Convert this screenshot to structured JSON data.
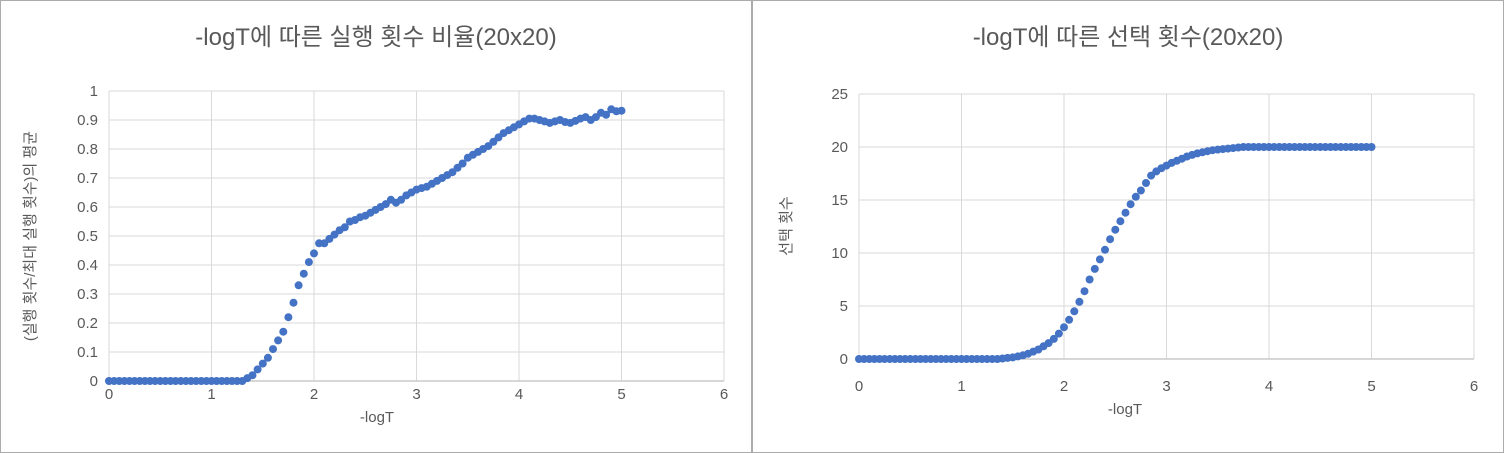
{
  "colors": {
    "marker_blue": "#4472C4",
    "text_gray": "#595959",
    "gridline_gray": "#D9D9D9",
    "axis_gray": "#BFBFBF",
    "panel_border_gray": "#ABABAB"
  },
  "chart_data": [
    {
      "type": "scatter",
      "title": "-logT에 따른 실행 횟수 비율(20x20)",
      "xlabel": "-logT",
      "ylabel": "(실행 횟수/최대 실행 횟수)의 평균",
      "xlim": [
        0,
        6
      ],
      "ylim": [
        0,
        1
      ],
      "x_ticks": [
        0,
        1,
        2,
        3,
        4,
        5,
        6
      ],
      "x_tick_labels": [
        "0",
        "1",
        "2",
        "3",
        "4",
        "5",
        "6"
      ],
      "y_ticks": [
        0,
        0.1,
        0.2,
        0.3,
        0.4,
        0.5,
        0.6,
        0.7,
        0.8,
        0.9,
        1
      ],
      "y_tick_labels": [
        "0",
        "0.1",
        "0.2",
        "0.3",
        "0.4",
        "0.5",
        "0.6",
        "0.7",
        "0.8",
        "0.9",
        "1"
      ],
      "grid": true,
      "legend": "none",
      "marker_color": "#4472C4",
      "x_start": 0,
      "x_step": 0.05,
      "y_values": [
        0,
        0,
        0,
        0,
        0,
        0,
        0,
        0,
        0,
        0,
        0,
        0,
        0,
        0,
        0,
        0,
        0,
        0,
        0,
        0,
        0,
        0,
        0,
        0,
        0,
        0,
        0,
        0.01,
        0.02,
        0.04,
        0.06,
        0.08,
        0.11,
        0.14,
        0.17,
        0.22,
        0.27,
        0.33,
        0.37,
        0.41,
        0.44,
        0.475,
        0.475,
        0.49,
        0.505,
        0.52,
        0.53,
        0.55,
        0.555,
        0.565,
        0.57,
        0.58,
        0.59,
        0.6,
        0.61,
        0.625,
        0.615,
        0.625,
        0.64,
        0.65,
        0.66,
        0.665,
        0.67,
        0.68,
        0.69,
        0.7,
        0.71,
        0.72,
        0.735,
        0.75,
        0.77,
        0.78,
        0.79,
        0.8,
        0.81,
        0.825,
        0.84,
        0.855,
        0.865,
        0.875,
        0.885,
        0.895,
        0.905,
        0.905,
        0.9,
        0.895,
        0.89,
        0.895,
        0.9,
        0.893,
        0.89,
        0.897,
        0.905,
        0.91,
        0.9,
        0.91,
        0.925,
        0.918,
        0.937,
        0.93,
        0.932
      ]
    },
    {
      "type": "scatter",
      "title": "-logT에 따른 선택 횟수(20x20)",
      "xlabel": "-logT",
      "ylabel": "선택 횟수",
      "xlim": [
        0,
        6
      ],
      "ylim": [
        0,
        25
      ],
      "x_ticks": [
        0,
        1,
        2,
        3,
        4,
        5,
        6
      ],
      "x_tick_labels": [
        "0",
        "1",
        "2",
        "3",
        "4",
        "5",
        "6"
      ],
      "y_ticks": [
        0,
        5,
        10,
        15,
        20,
        25
      ],
      "y_tick_labels": [
        "0",
        "5",
        "10",
        "15",
        "20",
        "25"
      ],
      "grid": true,
      "legend": "none",
      "marker_color": "#4472C4",
      "x_start": 0,
      "x_step": 0.05,
      "y_values": [
        0,
        0,
        0,
        0,
        0,
        0,
        0,
        0,
        0,
        0,
        0,
        0,
        0,
        0,
        0,
        0,
        0,
        0,
        0,
        0,
        0,
        0,
        0,
        0,
        0,
        0,
        0,
        0,
        0.05,
        0.1,
        0.15,
        0.25,
        0.35,
        0.5,
        0.7,
        0.9,
        1.2,
        1.5,
        1.9,
        2.4,
        3.0,
        3.7,
        4.5,
        5.4,
        6.4,
        7.5,
        8.5,
        9.4,
        10.3,
        11.3,
        12.2,
        13.0,
        13.8,
        14.6,
        15.3,
        15.9,
        16.6,
        17.3,
        17.7,
        18.0,
        18.25,
        18.5,
        18.7,
        18.9,
        19.1,
        19.25,
        19.4,
        19.5,
        19.6,
        19.7,
        19.75,
        19.8,
        19.85,
        19.9,
        19.95,
        20,
        20,
        20,
        20,
        20,
        20,
        20,
        20,
        20,
        20,
        20,
        20,
        20,
        20,
        20,
        20,
        20,
        20,
        20,
        20,
        20,
        20,
        20,
        20,
        20,
        20
      ]
    }
  ]
}
